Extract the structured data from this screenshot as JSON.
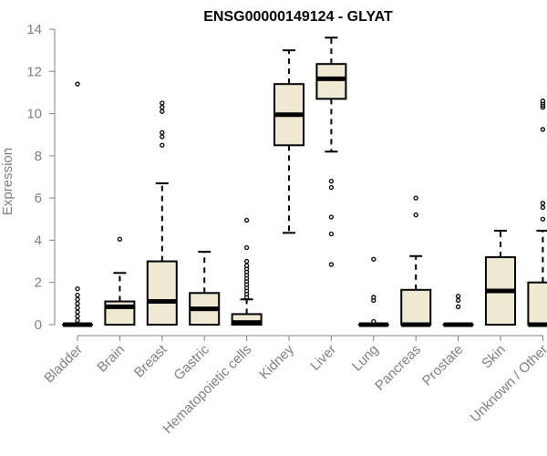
{
  "chart_data": {
    "type": "boxplot",
    "title": "ENSG00000149124 - GLYAT",
    "xlabel": "",
    "ylabel": "Expression",
    "ylim": [
      0,
      14
    ],
    "yticks": [
      0,
      2,
      4,
      6,
      8,
      10,
      12,
      14
    ],
    "grid": false,
    "colors": {
      "box_fill": "#efe8d2",
      "axis": "#808080",
      "stroke": "#000000"
    },
    "categories": [
      "Bladder",
      "Brain",
      "Breast",
      "Gastric",
      "Hematopoietic cells",
      "Kidney",
      "Liver",
      "Lung",
      "Pancreas",
      "Prostate",
      "Skin",
      "Unknown / Other"
    ],
    "boxes": [
      {
        "name": "Bladder",
        "whisker_low": 0,
        "q1": 0,
        "median": 0,
        "q3": 0,
        "whisker_high": 0,
        "outliers": [
          0.2,
          0.4,
          0.6,
          0.8,
          1.0,
          1.2,
          1.4,
          1.7,
          11.4
        ]
      },
      {
        "name": "Brain",
        "whisker_low": 0,
        "q1": 0,
        "median": 0.85,
        "q3": 1.1,
        "whisker_high": 2.45,
        "outliers": [
          4.05
        ]
      },
      {
        "name": "Breast",
        "whisker_low": 0,
        "q1": 0,
        "median": 1.1,
        "q3": 3.0,
        "whisker_high": 6.7,
        "outliers": [
          8.5,
          8.9,
          9.1,
          10.1,
          10.3,
          10.5
        ]
      },
      {
        "name": "Gastric",
        "whisker_low": 0,
        "q1": 0,
        "median": 0.75,
        "q3": 1.5,
        "whisker_high": 3.45,
        "outliers": []
      },
      {
        "name": "Hematopoietic cells",
        "whisker_low": 0,
        "q1": 0,
        "median": 0.1,
        "q3": 0.5,
        "whisker_high": 1.2,
        "outliers": [
          1.3,
          1.45,
          1.6,
          1.75,
          1.9,
          2.05,
          2.2,
          2.35,
          2.5,
          2.65,
          2.8,
          3.0,
          3.65,
          4.95
        ]
      },
      {
        "name": "Kidney",
        "whisker_low": 4.35,
        "q1": 8.5,
        "median": 9.95,
        "q3": 11.4,
        "whisker_high": 13.0,
        "outliers": []
      },
      {
        "name": "Liver",
        "whisker_low": 8.2,
        "q1": 10.7,
        "median": 11.65,
        "q3": 12.35,
        "whisker_high": 13.6,
        "outliers": [
          2.85,
          4.3,
          5.1,
          6.5,
          6.8
        ]
      },
      {
        "name": "Lung",
        "whisker_low": 0,
        "q1": 0,
        "median": 0,
        "q3": 0,
        "whisker_high": 0,
        "outliers": [
          0.15,
          1.15,
          1.3,
          3.1
        ]
      },
      {
        "name": "Pancreas",
        "whisker_low": 0,
        "q1": 0,
        "median": 0,
        "q3": 1.65,
        "whisker_high": 3.25,
        "outliers": [
          5.2,
          6.0
        ]
      },
      {
        "name": "Prostate",
        "whisker_low": 0,
        "q1": 0,
        "median": 0,
        "q3": 0,
        "whisker_high": 0,
        "outliers": [
          0.85,
          1.15,
          1.35
        ]
      },
      {
        "name": "Skin",
        "whisker_low": 0,
        "q1": 0,
        "median": 1.6,
        "q3": 3.2,
        "whisker_high": 4.45,
        "outliers": []
      },
      {
        "name": "Unknown / Other",
        "whisker_low": 0,
        "q1": 0,
        "median": 0,
        "q3": 2.0,
        "whisker_high": 4.45,
        "outliers": [
          5.0,
          5.55,
          5.75,
          9.25,
          10.3,
          10.4,
          10.5,
          10.6
        ]
      }
    ]
  }
}
